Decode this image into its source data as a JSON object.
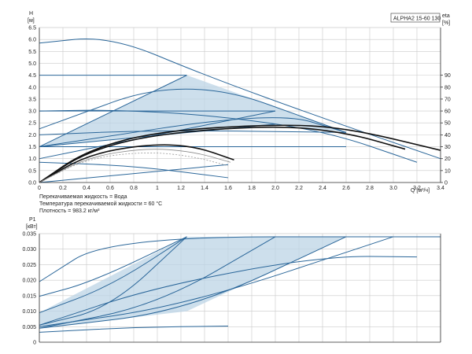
{
  "chart_data": [
    {
      "type": "line",
      "model_label": "ALPHA2 15-60 130",
      "ylabel_top": "H",
      "ylabel_unit": "[м]",
      "y2label_top": "eta",
      "y2label_unit": "[%]",
      "xlabel": "Q [м³/ч]",
      "xlim": [
        0,
        3.4
      ],
      "ylim": [
        0,
        6.5
      ],
      "y2lim": [
        0,
        100
      ],
      "x_ticks": [
        0,
        0.2,
        0.4,
        0.6,
        0.8,
        1.0,
        1.2,
        1.4,
        1.6,
        1.8,
        2.0,
        2.2,
        2.4,
        2.6,
        2.8,
        3.0,
        3.2,
        3.4
      ],
      "x_tick_labels": [
        "0",
        "0.2",
        "0.4",
        "0.6",
        "0.8",
        "1",
        "1.2",
        "1.4",
        "1.6",
        "1.8",
        "2.0",
        "2.2",
        "2.4",
        "2.6",
        "2.8",
        "3.0",
        "3.2",
        "3.4"
      ],
      "y_ticks": [
        0,
        0.5,
        1.0,
        1.5,
        2.0,
        2.5,
        3.0,
        3.5,
        4.0,
        4.5,
        5.0,
        5.5,
        6.0,
        6.5
      ],
      "y_tick_labels": [
        "0.0",
        "0.5",
        "1.0",
        "1.5",
        "2.0",
        "2.5",
        "3.0",
        "3.5",
        "4.0",
        "4.5",
        "5.0",
        "5.5",
        "6.0",
        "6.5"
      ],
      "y2_ticks": [
        0,
        10,
        20,
        30,
        40,
        50,
        60,
        70,
        80,
        90
      ],
      "y2_tick_labels": [
        "0",
        "10",
        "20",
        "30",
        "40",
        "50",
        "60",
        "70",
        "80",
        "90"
      ],
      "grid": true,
      "notes": [
        "Перекачиваемая жидкость = Вода",
        "Температура перекачиваемой жидкости = 60 °C",
        "Плотность = 983.2 кг/м³"
      ],
      "shaded_area": [
        [
          0,
          1.5
        ],
        [
          1.25,
          4.5
        ],
        [
          2.6,
          2.1
        ],
        [
          2.0,
          2.45
        ],
        [
          0,
          1.5
        ]
      ],
      "series": [
        {
          "style": "blue",
          "points": [
            [
              0,
              5.85
            ],
            [
              0.6,
              6.15
            ],
            [
              1.4,
              4.5
            ],
            [
              2.4,
              2.7
            ],
            [
              3.4,
              1.0
            ]
          ]
        },
        {
          "style": "blue",
          "points": [
            [
              0,
              4.5
            ],
            [
              1.25,
              4.5
            ]
          ]
        },
        {
          "style": "blue",
          "points": [
            [
              0,
              2.25
            ],
            [
              1.25,
              4.5
            ],
            [
              2.6,
              2.1
            ]
          ]
        },
        {
          "style": "blue",
          "points": [
            [
              0,
              1.5
            ],
            [
              1.25,
              4.5
            ]
          ]
        },
        {
          "style": "blue",
          "points": [
            [
              0,
              3.0
            ],
            [
              0.6,
              3.05
            ],
            [
              1.4,
              2.85
            ],
            [
              2.4,
              2.2
            ],
            [
              3.2,
              0.85
            ]
          ]
        },
        {
          "style": "blue",
          "points": [
            [
              0,
              3.0
            ],
            [
              2.0,
              3.0
            ]
          ]
        },
        {
          "style": "blue",
          "points": [
            [
              0,
              1.5
            ],
            [
              2.0,
              3.0
            ],
            [
              2.6,
              2.1
            ]
          ]
        },
        {
          "style": "blue",
          "points": [
            [
              0,
              1.0
            ],
            [
              2.0,
              3.0
            ]
          ]
        },
        {
          "style": "blue",
          "points": [
            [
              0,
              2.0
            ],
            [
              1.0,
              2.2
            ],
            [
              2.6,
              2.1
            ]
          ]
        },
        {
          "style": "blue",
          "points": [
            [
              0,
              1.5
            ],
            [
              2.0,
              2.45
            ]
          ]
        },
        {
          "style": "blue",
          "points": [
            [
              0,
              1.5
            ],
            [
              2.6,
              1.5
            ]
          ]
        },
        {
          "style": "blue",
          "points": [
            [
              0,
              0.85
            ],
            [
              0.8,
              0.7
            ],
            [
              1.6,
              0.2
            ]
          ]
        },
        {
          "style": "blue",
          "points": [
            [
              0,
              0.0
            ],
            [
              1.6,
              0.75
            ]
          ]
        },
        {
          "style": "black",
          "points": [
            [
              0,
              0.0
            ],
            [
              0.4,
              1.35
            ],
            [
              1.0,
              2.15
            ],
            [
              2.0,
              2.45
            ],
            [
              2.6,
              2.3
            ],
            [
              3.4,
              1.35
            ]
          ]
        },
        {
          "style": "black",
          "points": [
            [
              0,
              0.0
            ],
            [
              0.4,
              1.3
            ],
            [
              1.0,
              2.05
            ],
            [
              2.0,
              2.4
            ],
            [
              2.6,
              2.1
            ],
            [
              3.1,
              1.4
            ]
          ]
        },
        {
          "style": "black",
          "points": [
            [
              0,
              0.0
            ],
            [
              0.4,
              1.15
            ],
            [
              0.9,
              1.6
            ],
            [
              1.3,
              1.55
            ],
            [
              1.65,
              0.95
            ]
          ]
        },
        {
          "style": "gray",
          "points": [
            [
              0,
              0.0
            ],
            [
              0.4,
              1.05
            ],
            [
              0.9,
              1.45
            ],
            [
              1.3,
              1.3
            ],
            [
              1.62,
              0.85
            ]
          ]
        },
        {
          "style": "dash",
          "points": [
            [
              0,
              0.0
            ],
            [
              0.4,
              1.0
            ],
            [
              0.9,
              1.3
            ],
            [
              1.3,
              1.1
            ],
            [
              1.6,
              0.7
            ]
          ]
        }
      ]
    },
    {
      "type": "line",
      "ylabel_top": "P1",
      "ylabel_unit": "[кВт]",
      "xlim": [
        0,
        3.4
      ],
      "ylim": [
        0,
        0.035
      ],
      "y_ticks": [
        0,
        0.005,
        0.01,
        0.015,
        0.02,
        0.025,
        0.03,
        0.035
      ],
      "y_tick_labels": [
        "0",
        "0.005",
        "0.010",
        "0.015",
        "0.020",
        "0.025",
        "0.030",
        "0.035"
      ],
      "grid": true,
      "shaded_area": [
        [
          0,
          0.0095
        ],
        [
          1.25,
          0.034
        ],
        [
          2.6,
          0.034
        ],
        [
          1.25,
          0.01
        ],
        [
          0,
          0.0045
        ]
      ],
      "series": [
        {
          "style": "blue",
          "points": [
            [
              0,
              0.0195
            ],
            [
              0.6,
              0.034
            ],
            [
              3.4,
              0.034
            ]
          ]
        },
        {
          "style": "blue",
          "points": [
            [
              0,
              0.0148
            ],
            [
              0.45,
              0.0195
            ],
            [
              1.25,
              0.034
            ]
          ]
        },
        {
          "style": "blue",
          "points": [
            [
              0,
              0.0095
            ],
            [
              0.6,
              0.018
            ],
            [
              1.25,
              0.034
            ]
          ]
        },
        {
          "style": "blue",
          "points": [
            [
              0,
              0.0055
            ],
            [
              0.6,
              0.011
            ],
            [
              1.25,
              0.034
            ]
          ]
        },
        {
          "style": "blue",
          "points": [
            [
              0,
              0.0045
            ],
            [
              1.0,
              0.012
            ],
            [
              2.0,
              0.034
            ]
          ]
        },
        {
          "style": "blue",
          "points": [
            [
              0,
              0.0045
            ],
            [
              1.25,
              0.01
            ],
            [
              2.6,
              0.034
            ]
          ]
        },
        {
          "style": "blue",
          "points": [
            [
              0,
              0.005
            ],
            [
              1.25,
              0.012
            ],
            [
              3.0,
              0.034
            ]
          ]
        },
        {
          "style": "blue",
          "points": [
            [
              0,
              0.0055
            ],
            [
              1.0,
              0.018
            ],
            [
              2.4,
              0.0278
            ],
            [
              3.2,
              0.0275
            ]
          ]
        },
        {
          "style": "blue",
          "points": [
            [
              0,
              0.0032
            ],
            [
              0.8,
              0.0048
            ],
            [
              1.6,
              0.0052
            ]
          ]
        }
      ]
    }
  ]
}
